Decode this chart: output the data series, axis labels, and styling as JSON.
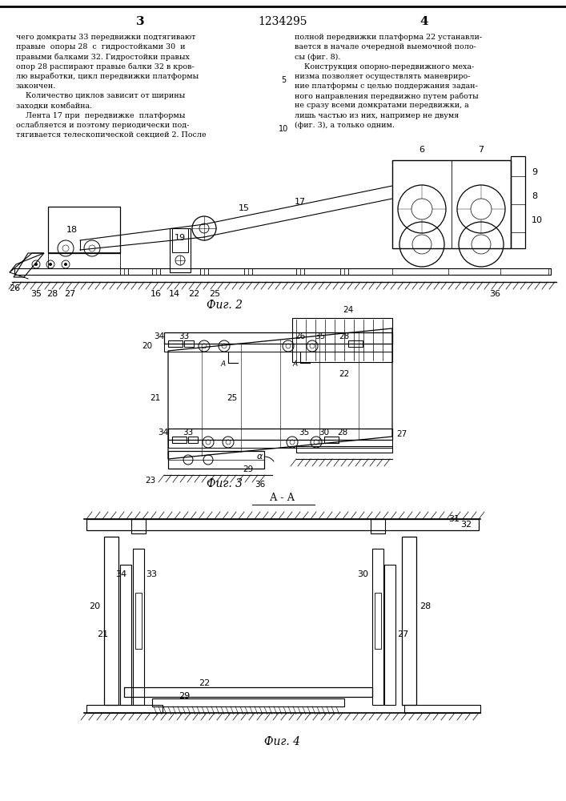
{
  "title": "1234295",
  "page_left": "3",
  "page_right": "4",
  "text_left_lines": [
    "чего домкраты 33 передвижки подтягивают",
    "правые  опоры 28  с  гидростойками 30  и",
    "правыми балками 32. Гидростойки правых",
    "опор 28 распирают правые балки 32 в кров-",
    "лю выработки, цикл передвижки платформы",
    "закончен.",
    "    Количество циклов зависит от ширины",
    "заходки комбайна.",
    "    Лента 17 при  передвижке  платформы",
    "ослабляется и поэтому периодически под-",
    "тягивается телескопической секцией 2. После"
  ],
  "text_right_lines": [
    "полной передвижки платформа 22 устанавли-",
    "вается в начале очередной выемочной поло-",
    "сы (фиг. 8).",
    "    Конструкция опорно-передвижного меха-",
    "низма позволяет осуществлять маневриро-",
    "ние платформы с целью поддержания задан-",
    "ного направления передвижно путем работы",
    "не сразу всеми домкратами передвижки, а",
    "лишь частью из них, например не двумя",
    "(фиг. 3), а только одним."
  ],
  "fig2_label": "Фиг. 2",
  "fig3_label": "Фиг. 3",
  "fig4_label": "Фиг. 4",
  "section_label": "А - А",
  "bg_color": "#ffffff",
  "lc": "#000000"
}
